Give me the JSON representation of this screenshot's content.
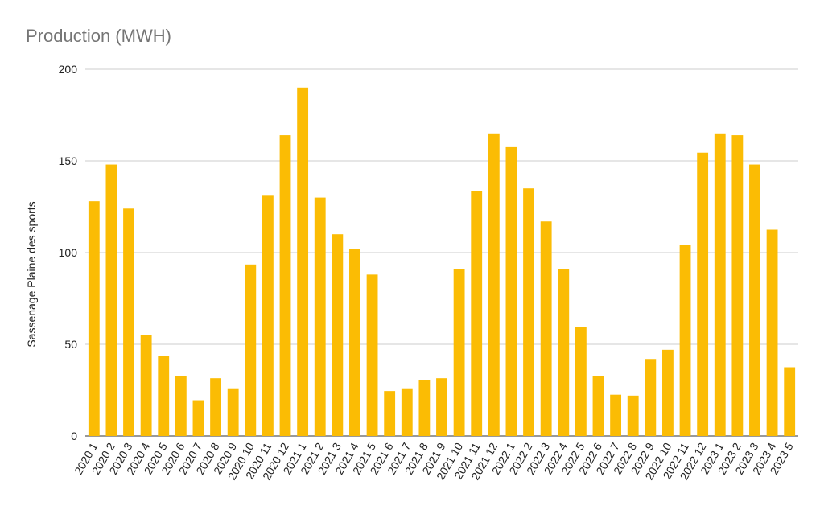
{
  "chart_data": {
    "type": "bar",
    "title": "Production (MWH)",
    "xlabel": "",
    "ylabel": "Sassenage Plaine des sports",
    "ylim": [
      0,
      200
    ],
    "yticks": [
      0,
      50,
      100,
      150,
      200
    ],
    "grid": true,
    "legend": "none",
    "bar_color": "#FBBC04",
    "categories": [
      "2020 1",
      "2020 2",
      "2020 3",
      "2020 4",
      "2020 5",
      "2020 6",
      "2020 7",
      "2020 8",
      "2020 9",
      "2020 10",
      "2020 11",
      "2020 12",
      "2021 1",
      "2021 2",
      "2021 3",
      "2021 4",
      "2021 5",
      "2021 6",
      "2021 7",
      "2021 8",
      "2021 9",
      "2021 10",
      "2021 11",
      "2021 12",
      "2022 1",
      "2022 2",
      "2022 3",
      "2022 4",
      "2022 5",
      "2022 6",
      "2022 7",
      "2022 8",
      "2022 9",
      "2022 10",
      "2022 11",
      "2022 12",
      "2023 1",
      "2023 2",
      "2023 3",
      "2023 4",
      "2023 5"
    ],
    "values": [
      128,
      148,
      124,
      55,
      43.5,
      32.5,
      19.5,
      31.5,
      26,
      93.5,
      131,
      164,
      190,
      130,
      110,
      102,
      88,
      24.5,
      26,
      30.5,
      31.5,
      91,
      133.5,
      165,
      157.5,
      135,
      117,
      91,
      59.5,
      32.5,
      22.5,
      22,
      42,
      47,
      104,
      154.5,
      165,
      164,
      148,
      112.5,
      37.5
    ]
  }
}
